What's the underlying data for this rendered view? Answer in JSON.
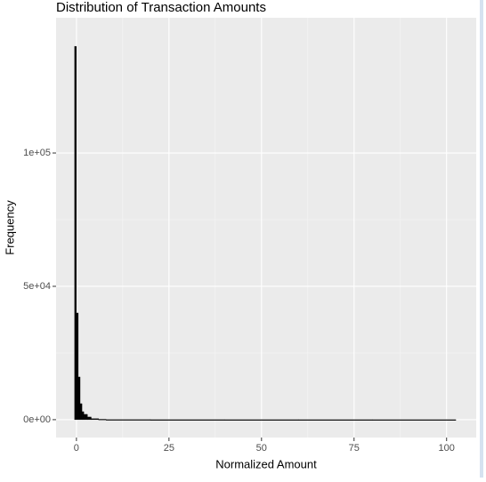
{
  "chart_data": {
    "type": "histogram",
    "title": "Distribution of Transaction Amounts",
    "x_label": "Normalized Amount",
    "y_label": "Frequency",
    "bins": [
      -0.5,
      0,
      0.5,
      1,
      1.5,
      2,
      3,
      4,
      6,
      8,
      20,
      40,
      60,
      80,
      102.5
    ],
    "values": [
      140000,
      40000,
      16000,
      6000,
      3000,
      2000,
      1000,
      400,
      150,
      40,
      10,
      5,
      3,
      2
    ],
    "color": "#000000",
    "xlim": [
      -5.5,
      108
    ],
    "ylim": [
      -6700,
      150700
    ],
    "xticks": [
      0,
      25,
      50,
      75,
      100
    ],
    "yticks": [
      {
        "value": 0,
        "label": "0e+00"
      },
      {
        "value": 50000,
        "label": "5e+04"
      },
      {
        "value": 100000,
        "label": "1e+05"
      }
    ],
    "grid": true
  }
}
